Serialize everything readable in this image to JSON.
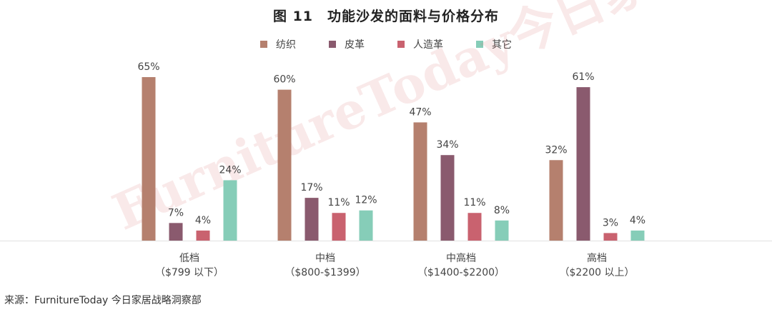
{
  "chart_data": {
    "type": "bar",
    "title": "图 11　功能沙发的面料与价格分布",
    "categories": [
      [
        "低档",
        "（$799 以下）"
      ],
      [
        "中档",
        "（$800-$1399）"
      ],
      [
        "中高档",
        "（$1400-$2200）"
      ],
      [
        "高档",
        "（$2200 以上）"
      ]
    ],
    "series": [
      {
        "name": "纺织",
        "color": "#b5806e",
        "values": [
          65,
          60,
          47,
          32
        ]
      },
      {
        "name": "皮革",
        "color": "#8a5a6e",
        "values": [
          7,
          17,
          34,
          61
        ]
      },
      {
        "name": "人造革",
        "color": "#c9626f",
        "values": [
          4,
          11,
          11,
          3
        ]
      },
      {
        "name": "其它",
        "color": "#86cdb8",
        "values": [
          24,
          12,
          8,
          4
        ]
      }
    ],
    "value_format": "%",
    "ylim": [
      0,
      70
    ],
    "grid": false,
    "legend_position": "top"
  },
  "source": "来源：FurnitureToday 今日家居战略洞察部",
  "watermark": "FurnitureToday今日家居"
}
